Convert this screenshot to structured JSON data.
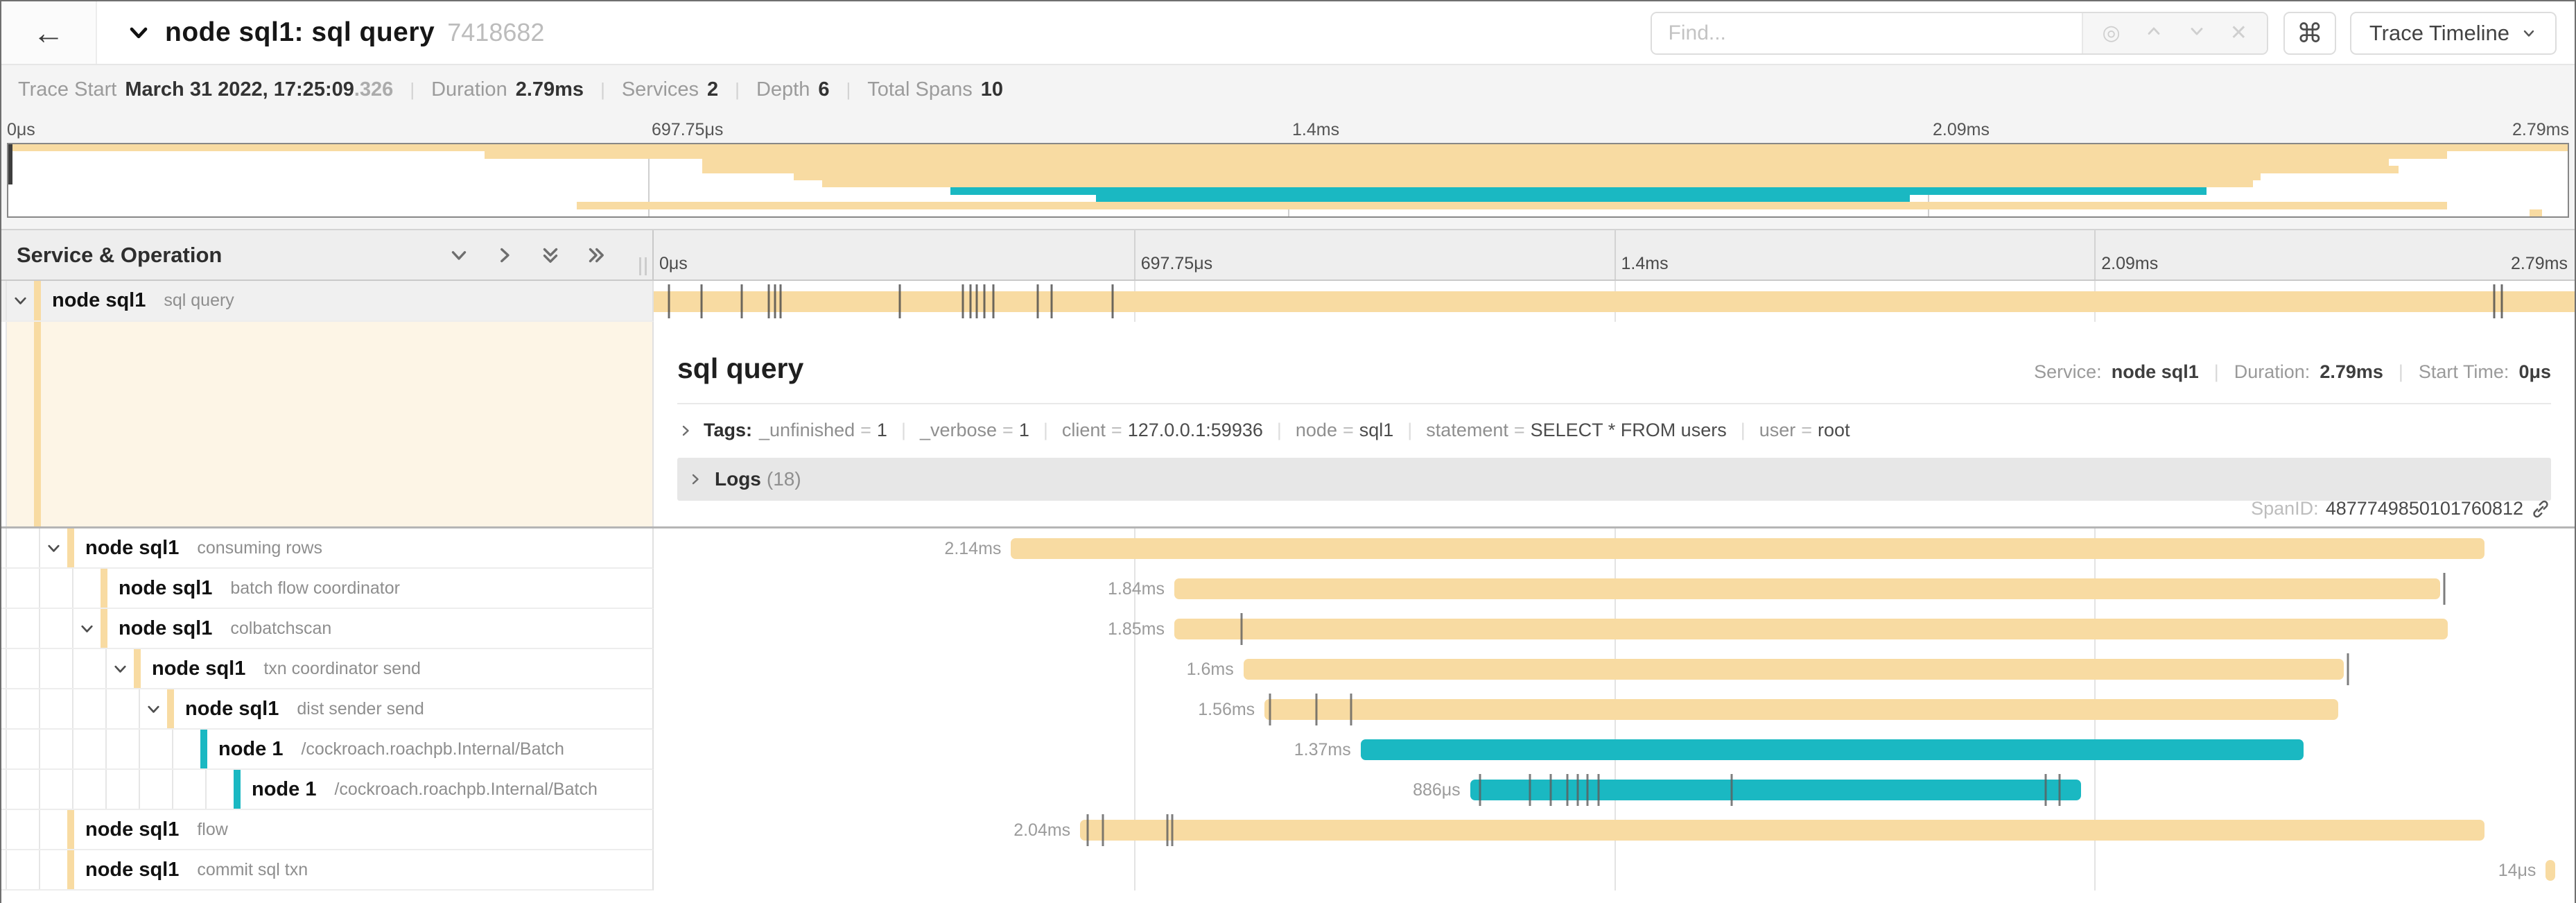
{
  "colors": {
    "tan": "#f8dba2",
    "teal": "#1ab8c2",
    "tick": "#5c5c5c"
  },
  "header": {
    "back_icon": "←",
    "title": "node sql1: sql query",
    "trace_id": "7418682",
    "find_placeholder": "Find...",
    "shortcut_button": "⌘",
    "view_button": "Trace Timeline"
  },
  "metadata": {
    "items": [
      {
        "label": "Trace Start",
        "value": "March 31 2022, 17:25:09",
        "suffix": ".326"
      },
      {
        "label": "Duration",
        "value": "2.79ms"
      },
      {
        "label": "Services",
        "value": "2"
      },
      {
        "label": "Depth",
        "value": "6"
      },
      {
        "label": "Total Spans",
        "value": "10"
      }
    ]
  },
  "timeline_ticks": [
    {
      "label": "0μs",
      "pos": 0
    },
    {
      "label": "697.75μs",
      "pos": 25
    },
    {
      "label": "1.4ms",
      "pos": 50
    },
    {
      "label": "2.09ms",
      "pos": 75
    },
    {
      "label": "2.79ms",
      "pos": 100
    }
  ],
  "left_header": {
    "title": "Service & Operation"
  },
  "spans": [
    {
      "service": "node sql1",
      "operation": "sql query",
      "depth": 0,
      "color": "tan",
      "chevron": true,
      "selected": true,
      "start": 0.0,
      "end": 1.0,
      "duration_label": "",
      "log_ticks": [
        0.008,
        0.025,
        0.046,
        0.06,
        0.063,
        0.066,
        0.128,
        0.161,
        0.165,
        0.168,
        0.172,
        0.177,
        0.2,
        0.207,
        0.239,
        0.958,
        0.962
      ]
    },
    {
      "service": "node sql1",
      "operation": "consuming rows",
      "depth": 1,
      "color": "tan",
      "chevron": true,
      "start": 0.186,
      "end": 0.953,
      "duration_label": "2.14ms",
      "log_ticks": []
    },
    {
      "service": "node sql1",
      "operation": "batch flow coordinator",
      "depth": 2,
      "color": "tan",
      "chevron": false,
      "start": 0.271,
      "end": 0.93,
      "duration_label": "1.84ms",
      "log_ticks": [
        0.932
      ]
    },
    {
      "service": "node sql1",
      "operation": "colbatchscan",
      "depth": 2,
      "color": "tan",
      "chevron": true,
      "start": 0.271,
      "end": 0.934,
      "duration_label": "1.85ms",
      "log_ticks": [
        0.306
      ]
    },
    {
      "service": "node sql1",
      "operation": "txn coordinator send",
      "depth": 3,
      "color": "tan",
      "chevron": true,
      "start": 0.307,
      "end": 0.88,
      "duration_label": "1.6ms",
      "log_ticks": [
        0.882
      ]
    },
    {
      "service": "node sql1",
      "operation": "dist sender send",
      "depth": 4,
      "color": "tan",
      "chevron": true,
      "start": 0.318,
      "end": 0.877,
      "duration_label": "1.56ms",
      "log_ticks": [
        0.321,
        0.345,
        0.363
      ]
    },
    {
      "service": "node 1",
      "operation": "/cockroach.roachpb.Internal/Batch",
      "depth": 5,
      "color": "teal",
      "chevron": false,
      "start": 0.368,
      "end": 0.859,
      "duration_label": "1.37ms",
      "log_ticks": []
    },
    {
      "service": "node 1",
      "operation": "/cockroach.roachpb.Internal/Batch",
      "depth": 6,
      "color": "teal",
      "chevron": false,
      "start": 0.425,
      "end": 0.743,
      "duration_label": "886μs",
      "log_ticks": [
        0.43,
        0.456,
        0.467,
        0.4755,
        0.481,
        0.486,
        0.492,
        0.561,
        0.7245,
        0.732
      ]
    },
    {
      "service": "node sql1",
      "operation": "flow",
      "depth": 1,
      "color": "tan",
      "chevron": false,
      "start": 0.222,
      "end": 0.953,
      "duration_label": "2.04ms",
      "log_ticks": [
        0.226,
        0.234,
        0.2675,
        0.27
      ]
    },
    {
      "service": "node sql1",
      "operation": "commit sql txn",
      "depth": 1,
      "color": "tan",
      "chevron": false,
      "start": 0.985,
      "end": 0.99,
      "duration_label": "14μs",
      "log_ticks": []
    }
  ],
  "detail": {
    "title": "sql query",
    "service_label": "Service:",
    "service": "node sql1",
    "duration_label": "Duration:",
    "duration": "2.79ms",
    "start_label": "Start Time:",
    "start": "0μs",
    "tags_label": "Tags:",
    "tags": [
      {
        "key": "_unfinished",
        "value": "1"
      },
      {
        "key": "_verbose",
        "value": "1"
      },
      {
        "key": "client",
        "value": "127.0.0.1:59936"
      },
      {
        "key": "node",
        "value": "sql1"
      },
      {
        "key": "statement",
        "value": "SELECT * FROM users"
      },
      {
        "key": "user",
        "value": "root"
      }
    ],
    "logs_label": "Logs",
    "logs_count": "(18)",
    "span_id_label": "SpanID:",
    "span_id": "4877749850101760812"
  }
}
